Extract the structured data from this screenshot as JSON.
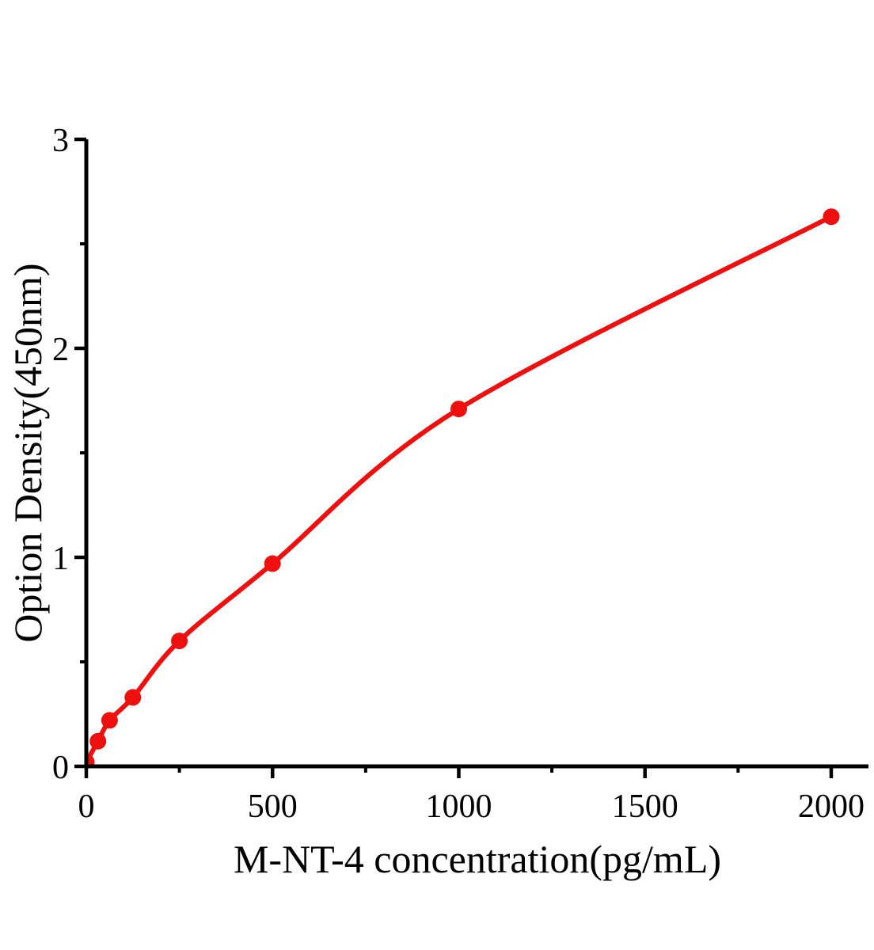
{
  "chart_data": {
    "type": "scatter",
    "title": "",
    "xlabel": "M-NT-4 concentration(pg/mL)",
    "ylabel": "Option Density(450nm)",
    "x": [
      0,
      31.25,
      62.5,
      125,
      250,
      500,
      1000,
      2000
    ],
    "y": [
      0.02,
      0.12,
      0.22,
      0.33,
      0.6,
      0.97,
      1.71,
      2.63
    ],
    "xlim": [
      0,
      2100
    ],
    "ylim": [
      0,
      3
    ],
    "x_major_ticks": [
      0,
      500,
      1000,
      1500,
      2000
    ],
    "x_minor_ticks": [
      250,
      750,
      1250,
      1750
    ],
    "y_major_ticks": [
      0,
      1,
      2,
      3
    ],
    "y_minor_ticks": [
      0.5,
      1.5,
      2.5
    ],
    "grid": false,
    "legend": "none",
    "line_style": "smooth-curve-through-points",
    "marker": "filled-circle",
    "marker_color": "#ee0f0f",
    "line_color": "#ee0f0f",
    "axis_color": "#000000",
    "background_color": "#ffffff"
  }
}
